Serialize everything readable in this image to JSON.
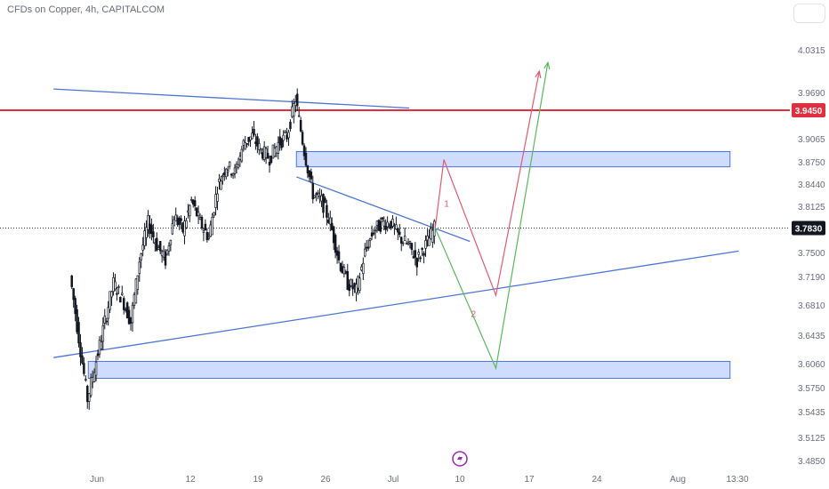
{
  "header": {
    "title": "CFDs on Copper, 4h, CAPITALCOM"
  },
  "colors": {
    "candle": "#131722",
    "trendline": "#4a74d6",
    "zone_fill": "#cfdcfb",
    "zone_border": "#4a74d6",
    "resistance": "#e0303f",
    "red_path": "#e05a70",
    "green_path": "#5cb85c",
    "axis_text": "#6a6d78",
    "icon": "#9c27b0"
  },
  "chart_data": {
    "type": "candlestick",
    "title": "CFDs on Copper, 4h, CAPITALCOM",
    "ylim": [
      3.465,
      4.058
    ],
    "y_ticks": [
      "4.0315",
      "3.9690",
      "3.9065",
      "3.8750",
      "3.8440",
      "3.8125",
      "3.7500",
      "3.7190",
      "3.6810",
      "3.6435",
      "3.6060",
      "3.5750",
      "3.5435",
      "3.5125",
      "3.4850"
    ],
    "x_ticks": [
      "Jun",
      "12",
      "19",
      "26",
      "Jul",
      "10",
      "17",
      "24",
      "Aug",
      "13:30"
    ],
    "price_labels": {
      "resistance": "3.9450",
      "current": "3.7830"
    },
    "path_labels": [
      "1",
      "2"
    ],
    "price_series": [
      [
        "2023-05-29",
        3.72
      ],
      [
        "2023-05-30",
        3.64
      ],
      [
        "2023-05-31",
        3.56
      ],
      [
        "2023-06-01",
        3.61
      ],
      [
        "2023-06-02",
        3.66
      ],
      [
        "2023-06-03",
        3.71
      ],
      [
        "2023-06-04",
        3.69
      ],
      [
        "2023-06-05",
        3.66
      ],
      [
        "2023-06-06",
        3.74
      ],
      [
        "2023-06-07",
        3.79
      ],
      [
        "2023-06-08",
        3.76
      ],
      [
        "2023-06-09",
        3.74
      ],
      [
        "2023-06-10",
        3.8
      ],
      [
        "2023-06-11",
        3.78
      ],
      [
        "2023-06-12",
        3.82
      ],
      [
        "2023-06-13",
        3.79
      ],
      [
        "2023-06-14",
        3.77
      ],
      [
        "2023-06-15",
        3.84
      ],
      [
        "2023-06-16",
        3.87
      ],
      [
        "2023-06-17",
        3.86
      ],
      [
        "2023-06-18",
        3.9
      ],
      [
        "2023-06-19",
        3.91
      ],
      [
        "2023-06-20",
        3.89
      ],
      [
        "2023-06-21",
        3.88
      ],
      [
        "2023-06-22",
        3.9
      ],
      [
        "2023-06-23",
        3.91
      ],
      [
        "2023-06-24",
        3.96
      ],
      [
        "2023-06-25",
        3.89
      ],
      [
        "2023-06-26",
        3.83
      ],
      [
        "2023-06-27",
        3.82
      ],
      [
        "2023-06-28",
        3.79
      ],
      [
        "2023-06-29",
        3.74
      ],
      [
        "2023-06-30",
        3.71
      ],
      [
        "2023-07-01",
        3.7
      ],
      [
        "2023-07-02",
        3.75
      ],
      [
        "2023-07-03",
        3.78
      ],
      [
        "2023-07-04",
        3.79
      ],
      [
        "2023-07-05",
        3.79
      ],
      [
        "2023-07-06",
        3.77
      ],
      [
        "2023-07-07",
        3.76
      ],
      [
        "2023-07-08",
        3.74
      ],
      [
        "2023-07-09",
        3.76
      ],
      [
        "2023-07-10",
        3.783
      ]
    ],
    "trendlines": [
      {
        "name": "upper-trendline",
        "points": [
          [
            "2023-05-27",
            3.974
          ],
          [
            "2023-07-07",
            3.948
          ]
        ]
      },
      {
        "name": "descending-trendline",
        "points": [
          [
            "2023-06-24",
            3.854
          ],
          [
            "2023-07-14",
            3.765
          ]
        ]
      },
      {
        "name": "ascending-trendline",
        "points": [
          [
            "2023-05-27",
            3.614
          ],
          [
            "2023-08-14",
            3.752
          ]
        ]
      }
    ],
    "horizontal_lines": [
      {
        "name": "resistance-line",
        "value": 3.945
      },
      {
        "name": "current-price-line",
        "value": 3.783
      }
    ],
    "zones": [
      {
        "name": "supply-zone",
        "from": "2023-06-24",
        "to": "2023-08-13",
        "top": 3.889,
        "bottom": 3.868
      },
      {
        "name": "demand-zone",
        "from": "2023-05-31",
        "to": "2023-08-13",
        "top": 3.609,
        "bottom": 3.587
      }
    ],
    "projections": [
      {
        "name": "red-path",
        "label": "1",
        "points": [
          [
            "2023-07-10",
            3.783
          ],
          [
            "2023-07-11",
            3.878
          ],
          [
            "2023-07-17",
            3.694
          ],
          [
            "2023-07-22",
            4.0
          ]
        ]
      },
      {
        "name": "green-path",
        "label": "2",
        "points": [
          [
            "2023-07-10",
            3.783
          ],
          [
            "2023-07-17",
            3.6
          ],
          [
            "2023-07-23",
            4.013
          ]
        ]
      }
    ]
  }
}
